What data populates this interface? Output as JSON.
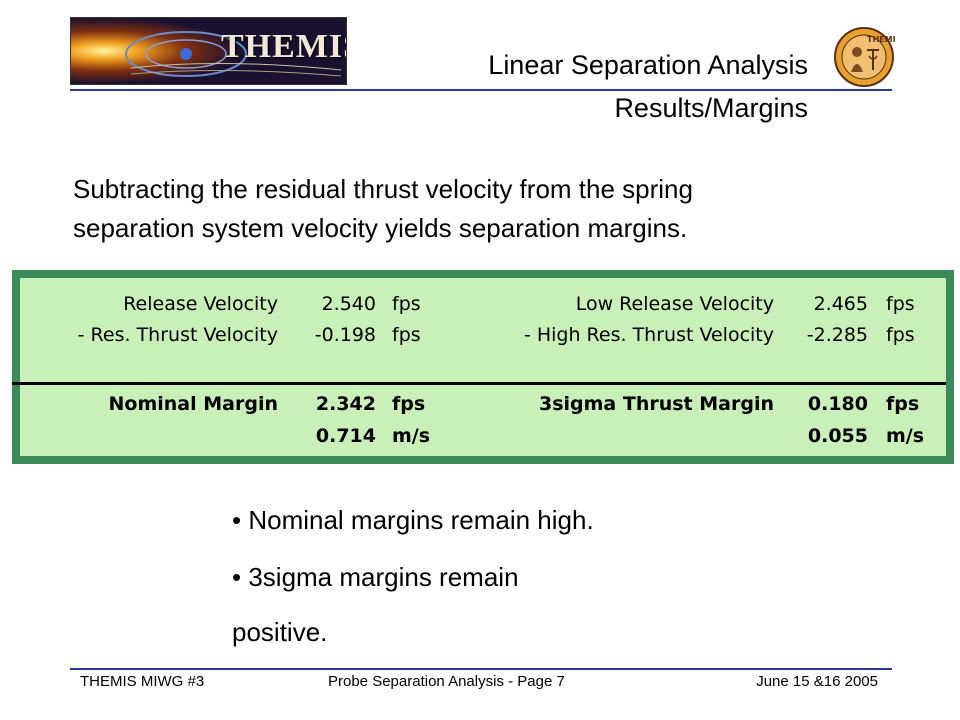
{
  "header": {
    "logo_text": "THEMIS",
    "seal_text": "THEMIS",
    "title_line1": "Linear Separation Analysis",
    "title_line2": "Results/Margins"
  },
  "intro": {
    "line1": "Subtracting the residual thrust velocity from the spring",
    "line2": "separation system velocity yields separation margins."
  },
  "table": {
    "left": {
      "row1": {
        "label": "Release Velocity",
        "value": "2.540",
        "unit": "fps"
      },
      "row2": {
        "label": "- Res. Thrust Velocity",
        "value": "-0.198",
        "unit": "fps"
      },
      "row3": {
        "label": "Nominal Margin",
        "value": "2.342",
        "unit": "fps"
      },
      "row4": {
        "label": "",
        "value": "0.714",
        "unit": "m/s"
      }
    },
    "right": {
      "row1": {
        "label": "Low Release Velocity",
        "value": "2.465",
        "unit": "fps"
      },
      "row2": {
        "label": "- High Res. Thrust Velocity",
        "value": "-2.285",
        "unit": "fps"
      },
      "row3": {
        "label": "3sigma Thrust Margin",
        "value": "0.180",
        "unit": "fps"
      },
      "row4": {
        "label": "",
        "value": "0.055",
        "unit": "m/s"
      }
    }
  },
  "bullets": {
    "b1": "• Nominal margins remain high.",
    "b2": "• 3sigma margins remain",
    "b2_cont": "positive."
  },
  "footer": {
    "left": "THEMIS MIWG #3",
    "center": "Probe Separation Analysis - Page 7",
    "right": "June 15 &16 2005"
  }
}
